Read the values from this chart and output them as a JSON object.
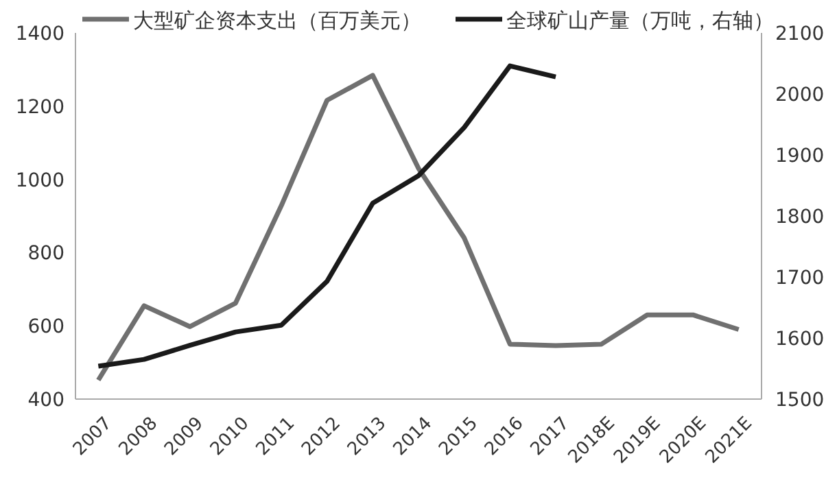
{
  "chart_data": {
    "type": "line",
    "categories": [
      "2007",
      "2008",
      "2009",
      "2010",
      "2011",
      "2012",
      "2013",
      "2014",
      "2015",
      "2016",
      "2017",
      "2018E",
      "2019E",
      "2020E",
      "2021E"
    ],
    "series": [
      {
        "name": "大型矿企资本支出（百万美元）",
        "color": "#707070",
        "values": [
          452,
          655,
          598,
          662,
          928,
          1216,
          1284,
          1030,
          840,
          550,
          546,
          550,
          630,
          630,
          590
        ]
      },
      {
        "name": "全球矿山产量（万吨，右轴）",
        "color": "#1a1a1a",
        "axis": "y2",
        "values": [
          1554,
          1565,
          1588,
          1610,
          1621,
          1693,
          1821,
          1866,
          1945,
          2046,
          2028,
          null,
          null,
          null,
          null
        ]
      }
    ],
    "ylim": [
      400,
      1400
    ],
    "yticks": [
      400,
      600,
      800,
      1000,
      1200,
      1400
    ],
    "y2lim": [
      1500,
      2100
    ],
    "y2ticks": [
      1500,
      1600,
      1700,
      1800,
      1900,
      2000,
      2100
    ],
    "legend": "top",
    "grid": false,
    "marker": "none",
    "line_style": "solid"
  }
}
